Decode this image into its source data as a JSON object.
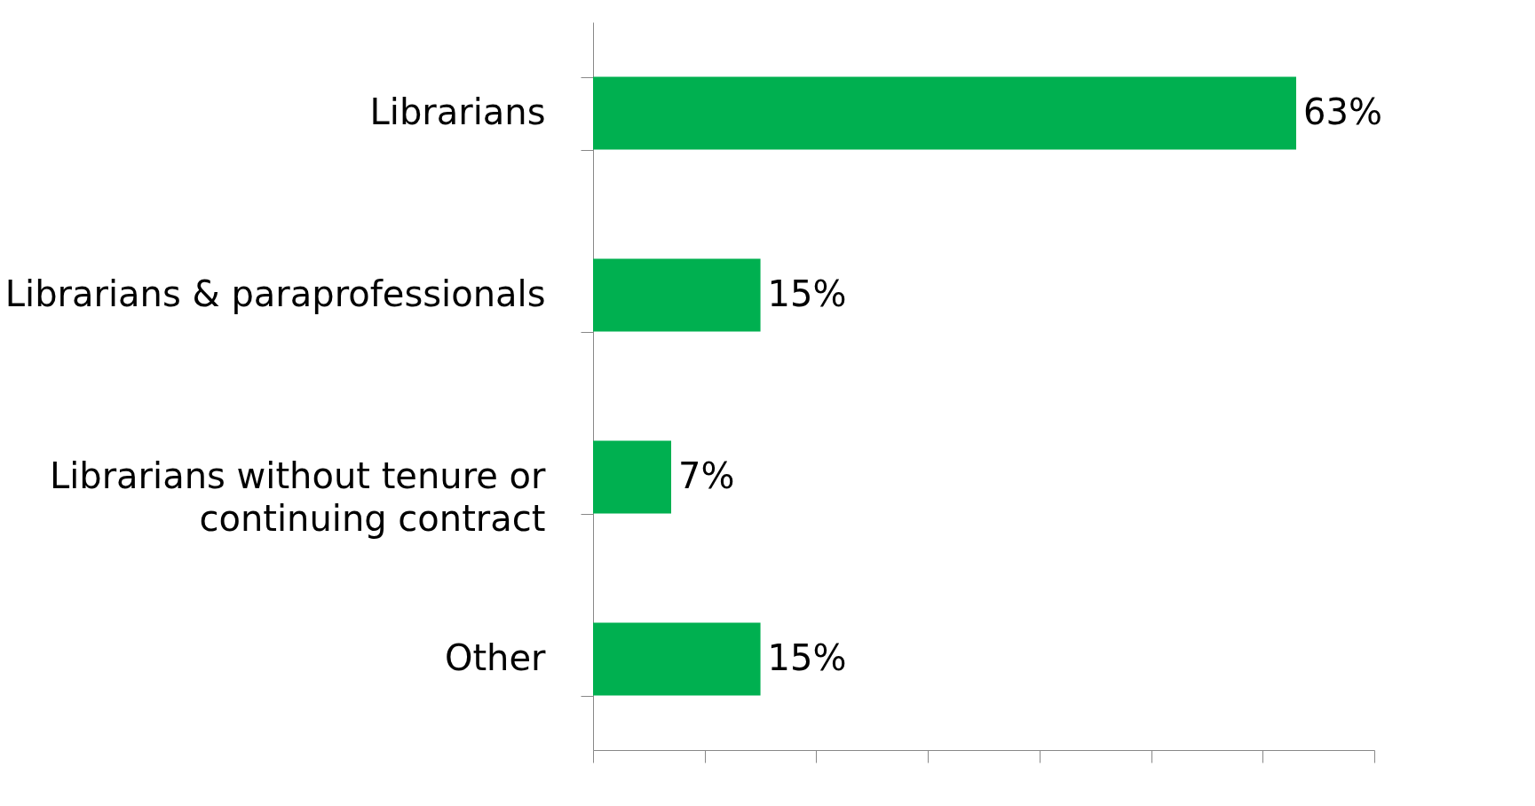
{
  "chart_data": {
    "type": "bar",
    "orientation": "horizontal",
    "categories": [
      "Librarians",
      "Librarians & paraprofessionals",
      "Librarians without tenure or continuing contract",
      "Other"
    ],
    "values": [
      63,
      15,
      7,
      15
    ],
    "color": "#00b050",
    "xlim": [
      0,
      70
    ],
    "xticks": [
      {
        "value": 0,
        "label": null
      },
      {
        "value": 10,
        "label": null
      },
      {
        "value": 20,
        "label": null
      },
      {
        "value": 30,
        "label": null
      },
      {
        "value": 40,
        "label": null
      },
      {
        "value": 50,
        "label": null
      },
      {
        "value": 60,
        "label": null
      },
      {
        "value": 70,
        "label": null
      }
    ],
    "value_labels": [
      "63%",
      "15%",
      "7%",
      "15%"
    ],
    "tick_labels": "y",
    "grid": false
  }
}
